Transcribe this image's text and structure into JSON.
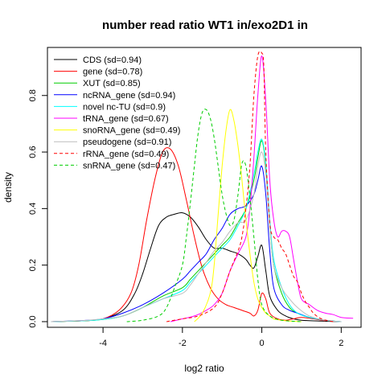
{
  "chart_data": {
    "type": "line",
    "title": "number read ratio WT1 in/exo2D1 in",
    "xlabel": "log2 ratio",
    "ylabel": "density",
    "xlim": [
      -5.4,
      2.5
    ],
    "ylim": [
      -0.02,
      0.97
    ],
    "xticks": [
      -4,
      -2,
      0,
      2
    ],
    "xtick_labels": [
      "-4",
      "-2",
      "0",
      "2"
    ],
    "yticks": [
      0.0,
      0.2,
      0.4,
      0.6,
      0.8
    ],
    "ytick_labels": [
      "0.0",
      "0.2",
      "0.4",
      "0.6",
      "0.8"
    ],
    "grid": false,
    "legend_position": "top-left",
    "series": [
      {
        "name": "CDS (sd=0.94)",
        "color": "#000000",
        "dashed": false,
        "x": [
          -5.3,
          -4.5,
          -4.0,
          -3.5,
          -3.2,
          -3.0,
          -2.8,
          -2.6,
          -2.4,
          -2.2,
          -2.0,
          -1.8,
          -1.6,
          -1.4,
          -1.2,
          -1.0,
          -0.8,
          -0.6,
          -0.4,
          -0.3,
          -0.2,
          -0.1,
          0.0,
          0.1,
          0.2,
          0.4,
          0.6,
          0.8,
          1.0,
          1.5,
          2.0
        ],
        "y": [
          0.0,
          0.003,
          0.01,
          0.04,
          0.1,
          0.17,
          0.26,
          0.34,
          0.37,
          0.38,
          0.385,
          0.37,
          0.335,
          0.29,
          0.26,
          0.26,
          0.25,
          0.24,
          0.22,
          0.2,
          0.19,
          0.23,
          0.27,
          0.18,
          0.09,
          0.04,
          0.02,
          0.01,
          0.005,
          0.002,
          0.0
        ]
      },
      {
        "name": "gene (sd=0.78)",
        "color": "#ff0000",
        "dashed": false,
        "x": [
          -5.3,
          -4.5,
          -4.0,
          -3.6,
          -3.3,
          -3.1,
          -2.9,
          -2.7,
          -2.5,
          -2.3,
          -2.1,
          -1.9,
          -1.7,
          -1.5,
          -1.3,
          -1.1,
          -0.9,
          -0.7,
          -0.5,
          -0.3,
          -0.2,
          -0.1,
          0.0,
          0.1,
          0.2,
          0.4,
          0.6,
          0.8,
          1.0,
          1.3,
          1.6
        ],
        "y": [
          0.0,
          0.003,
          0.01,
          0.04,
          0.1,
          0.2,
          0.36,
          0.5,
          0.6,
          0.61,
          0.55,
          0.43,
          0.3,
          0.19,
          0.12,
          0.08,
          0.06,
          0.05,
          0.04,
          0.03,
          0.02,
          0.04,
          0.1,
          0.08,
          0.03,
          0.01,
          0.005,
          0.01,
          0.015,
          0.01,
          0.003
        ]
      },
      {
        "name": "XUT (sd=0.85)",
        "color": "#00cd00",
        "dashed": false,
        "x": [
          -5.3,
          -4.5,
          -4.0,
          -3.5,
          -3.0,
          -2.5,
          -2.0,
          -1.8,
          -1.6,
          -1.4,
          -1.2,
          -1.0,
          -0.8,
          -0.6,
          -0.4,
          -0.2,
          -0.1,
          0.0,
          0.1,
          0.2,
          0.3,
          0.5,
          0.7,
          0.9,
          1.2,
          1.6,
          2.0
        ],
        "y": [
          0.0,
          0.003,
          0.008,
          0.02,
          0.05,
          0.09,
          0.12,
          0.15,
          0.18,
          0.21,
          0.24,
          0.27,
          0.3,
          0.35,
          0.4,
          0.5,
          0.58,
          0.64,
          0.55,
          0.34,
          0.2,
          0.1,
          0.05,
          0.03,
          0.015,
          0.005,
          0.0
        ]
      },
      {
        "name": "ncRNA_gene (sd=0.94)",
        "color": "#0000ff",
        "dashed": false,
        "x": [
          -5.3,
          -4.5,
          -4.0,
          -3.5,
          -3.0,
          -2.5,
          -2.0,
          -1.8,
          -1.6,
          -1.4,
          -1.2,
          -1.0,
          -0.8,
          -0.6,
          -0.4,
          -0.2,
          -0.1,
          0.0,
          0.1,
          0.2,
          0.3,
          0.5,
          0.7,
          0.9,
          1.2,
          1.6,
          2.0
        ],
        "y": [
          0.0,
          0.004,
          0.01,
          0.03,
          0.06,
          0.1,
          0.15,
          0.18,
          0.21,
          0.24,
          0.29,
          0.33,
          0.38,
          0.4,
          0.41,
          0.45,
          0.5,
          0.55,
          0.45,
          0.25,
          0.12,
          0.06,
          0.04,
          0.03,
          0.015,
          0.005,
          0.0
        ]
      },
      {
        "name": "novel nc-TU (sd=0.9)",
        "color": "#00ffff",
        "dashed": false,
        "x": [
          -5.3,
          -4.5,
          -4.0,
          -3.5,
          -3.0,
          -2.5,
          -2.0,
          -1.8,
          -1.6,
          -1.4,
          -1.2,
          -1.0,
          -0.8,
          -0.6,
          -0.4,
          -0.2,
          -0.1,
          0.0,
          0.1,
          0.2,
          0.3,
          0.5,
          0.7,
          0.9,
          1.2,
          1.6,
          2.0
        ],
        "y": [
          0.0,
          0.003,
          0.008,
          0.02,
          0.05,
          0.08,
          0.11,
          0.14,
          0.17,
          0.2,
          0.23,
          0.26,
          0.29,
          0.34,
          0.4,
          0.52,
          0.6,
          0.645,
          0.56,
          0.36,
          0.22,
          0.12,
          0.06,
          0.03,
          0.015,
          0.005,
          0.0
        ]
      },
      {
        "name": "tRNA_gene (sd=0.67)",
        "color": "#ff00ff",
        "dashed": false,
        "x": [
          -2.3,
          -2.0,
          -1.7,
          -1.4,
          -1.2,
          -1.0,
          -0.8,
          -0.6,
          -0.4,
          -0.3,
          -0.2,
          -0.1,
          0.0,
          0.1,
          0.2,
          0.3,
          0.4,
          0.5,
          0.6,
          0.7,
          0.8,
          0.9,
          1.0,
          1.2,
          1.4,
          1.6,
          1.8,
          2.0,
          2.3
        ],
        "y": [
          0.0,
          0.01,
          0.02,
          0.04,
          0.06,
          0.1,
          0.18,
          0.24,
          0.3,
          0.4,
          0.58,
          0.8,
          0.94,
          0.78,
          0.5,
          0.36,
          0.3,
          0.32,
          0.32,
          0.3,
          0.22,
          0.14,
          0.08,
          0.06,
          0.04,
          0.03,
          0.025,
          0.015,
          0.012
        ]
      },
      {
        "name": "snoRNA_gene (sd=0.49)",
        "color": "#ffff00",
        "dashed": false,
        "x": [
          -1.7,
          -1.5,
          -1.3,
          -1.2,
          -1.1,
          -1.0,
          -0.9,
          -0.8,
          -0.7,
          -0.6,
          -0.5,
          -0.4,
          -0.3,
          -0.2,
          -0.1,
          0.0,
          0.1,
          0.2,
          0.3,
          0.5,
          0.7,
          1.0
        ],
        "y": [
          0.0,
          0.03,
          0.1,
          0.2,
          0.38,
          0.55,
          0.68,
          0.75,
          0.71,
          0.62,
          0.5,
          0.36,
          0.24,
          0.14,
          0.08,
          0.05,
          0.03,
          0.02,
          0.01,
          0.005,
          0.002,
          0.0
        ]
      },
      {
        "name": "pseudogene (sd=0.91)",
        "color": "#bebebe",
        "dashed": false,
        "x": [
          -5.3,
          -4.5,
          -4.0,
          -3.5,
          -3.0,
          -2.5,
          -2.0,
          -1.8,
          -1.6,
          -1.4,
          -1.2,
          -1.0,
          -0.8,
          -0.6,
          -0.4,
          -0.2,
          -0.1,
          0.0,
          0.1,
          0.2,
          0.3,
          0.5,
          0.7,
          0.9,
          1.2,
          1.6,
          2.0
        ],
        "y": [
          0.0,
          0.004,
          0.01,
          0.02,
          0.05,
          0.08,
          0.1,
          0.13,
          0.17,
          0.21,
          0.25,
          0.28,
          0.32,
          0.35,
          0.36,
          0.45,
          0.55,
          0.6,
          0.52,
          0.34,
          0.2,
          0.12,
          0.08,
          0.05,
          0.02,
          0.005,
          0.0
        ]
      },
      {
        "name": "rRNA_gene (sd=0.49)",
        "color": "#ff0000",
        "dashed": true,
        "x": [
          -2.4,
          -2.0,
          -1.6,
          -1.2,
          -1.0,
          -0.8,
          -0.6,
          -0.5,
          -0.4,
          -0.3,
          -0.2,
          -0.1,
          0.0,
          0.05,
          0.1,
          0.2,
          0.3,
          0.4,
          0.5,
          0.6,
          0.7,
          0.8,
          0.9,
          1.0,
          1.1,
          1.2,
          1.3,
          1.5,
          1.8
        ],
        "y": [
          0.0,
          0.01,
          0.02,
          0.05,
          0.1,
          0.18,
          0.25,
          0.3,
          0.4,
          0.55,
          0.8,
          0.94,
          0.95,
          0.9,
          0.6,
          0.35,
          0.3,
          0.29,
          0.26,
          0.24,
          0.2,
          0.16,
          0.14,
          0.1,
          0.07,
          0.05,
          0.03,
          0.01,
          0.0
        ]
      },
      {
        "name": "snRNA_gene (sd=0.47)",
        "color": "#00cd00",
        "dashed": true,
        "x": [
          -3.4,
          -3.0,
          -2.6,
          -2.4,
          -2.2,
          -2.0,
          -1.9,
          -1.8,
          -1.7,
          -1.6,
          -1.5,
          -1.4,
          -1.3,
          -1.2,
          -1.1,
          -1.0,
          -0.9,
          -0.8,
          -0.7,
          -0.6,
          -0.5,
          -0.4,
          -0.3,
          -0.2,
          -0.1,
          0.0,
          0.2,
          0.5,
          1.0
        ],
        "y": [
          0.0,
          0.005,
          0.02,
          0.05,
          0.12,
          0.2,
          0.3,
          0.42,
          0.55,
          0.67,
          0.74,
          0.75,
          0.72,
          0.65,
          0.55,
          0.45,
          0.38,
          0.34,
          0.36,
          0.45,
          0.56,
          0.55,
          0.44,
          0.3,
          0.15,
          0.06,
          0.02,
          0.005,
          0.0
        ]
      }
    ]
  }
}
